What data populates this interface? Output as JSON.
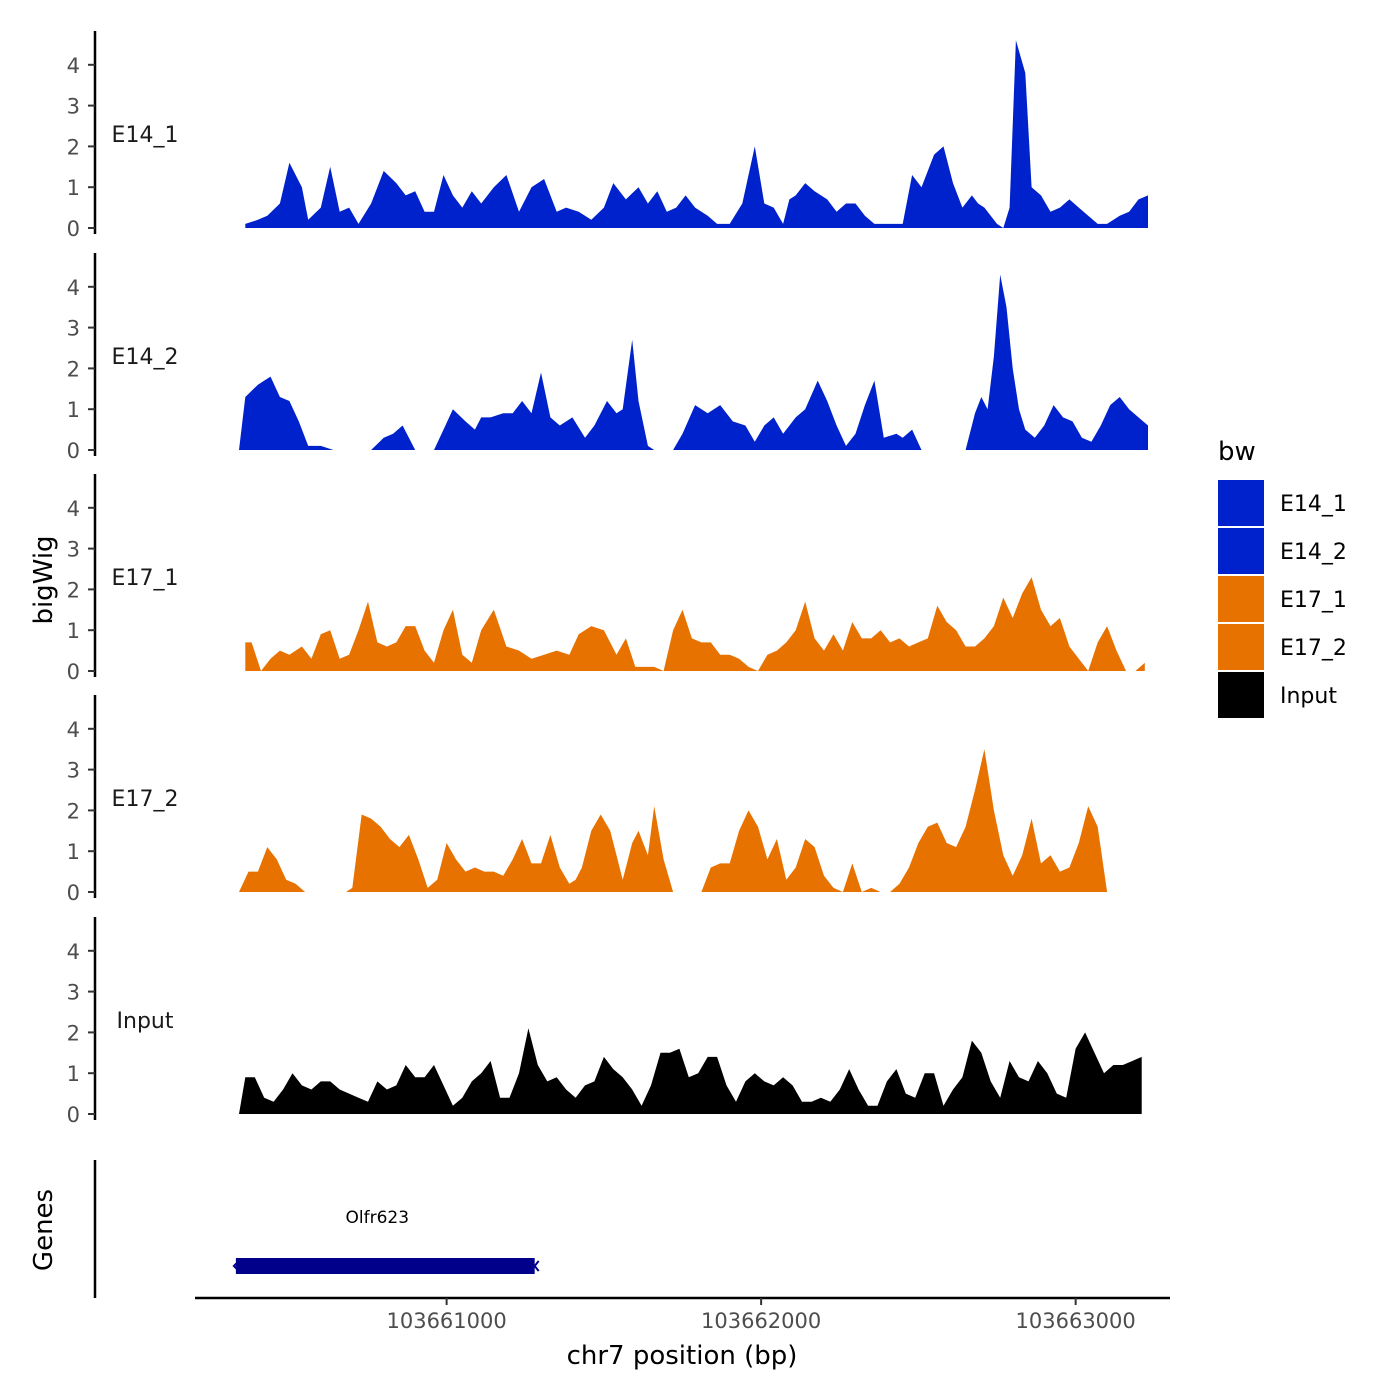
{
  "chart_data": {
    "type": "area",
    "ylabel": "bigWig",
    "xlabel": "chr7 position (bp)",
    "ylim": [
      0,
      4.7
    ],
    "xlim": [
      103660200,
      103663300
    ],
    "y_ticks": [
      0,
      1,
      2,
      3,
      4
    ],
    "x_ticks": [
      103661000,
      103662000,
      103663000
    ],
    "x_tick_labels": [
      "103661000",
      "103662000",
      "103663000"
    ],
    "legend": {
      "title": "bw",
      "position": "right",
      "entries": [
        {
          "label": "E14_1",
          "color": "#0022CC"
        },
        {
          "label": "E14_2",
          "color": "#0022CC"
        },
        {
          "label": "E17_1",
          "color": "#E87200"
        },
        {
          "label": "E17_2",
          "color": "#E87200"
        },
        {
          "label": "Input",
          "color": "#000000"
        }
      ]
    },
    "series": [
      {
        "name": "E14_1",
        "color": "#0022CC",
        "x": [
          103660360,
          103660400,
          103660430,
          103660470,
          103660500,
          103660540,
          103660560,
          103660600,
          103660630,
          103660660,
          103660690,
          103660720,
          103660760,
          103660780,
          103660800,
          103660840,
          103660870,
          103660900,
          103660930,
          103660960,
          103660990,
          103661020,
          103661050,
          103661080,
          103661110,
          103661150,
          103661190,
          103661230,
          103661270,
          103661310,
          103661350,
          103661380,
          103661420,
          103661460,
          103661500,
          103661530,
          103661570,
          103661610,
          103661640,
          103661670,
          103661700,
          103661730,
          103661760,
          103661790,
          103661830,
          103661860,
          103661900,
          103661940,
          103661980,
          103662010,
          103662040,
          103662070,
          103662090,
          103662110,
          103662140,
          103662170,
          103662210,
          103662240,
          103662270,
          103662300,
          103662330,
          103662360,
          103662390,
          103662420,
          103662450,
          103662480,
          103662510,
          103662550,
          103662580,
          103662610,
          103662640,
          103662670,
          103662690,
          103662710,
          103662730,
          103662750,
          103662770,
          103662790,
          103662810,
          103662840,
          103662860,
          103662890,
          103662920,
          103662950,
          103662980,
          103663010,
          103663040,
          103663070,
          103663100,
          103663140,
          103663170,
          103663200,
          103663230
        ],
        "y": [
          0.1,
          0.2,
          0.3,
          0.6,
          1.6,
          1.0,
          0.2,
          0.5,
          1.5,
          0.4,
          0.5,
          0.1,
          0.6,
          1.0,
          1.4,
          1.1,
          0.8,
          0.9,
          0.4,
          0.4,
          1.3,
          0.8,
          0.5,
          0.9,
          0.6,
          1.0,
          1.3,
          0.4,
          1.0,
          1.2,
          0.4,
          0.5,
          0.4,
          0.2,
          0.5,
          1.1,
          0.7,
          1.0,
          0.6,
          0.9,
          0.4,
          0.5,
          0.8,
          0.5,
          0.3,
          0.1,
          0.1,
          0.6,
          2.0,
          0.6,
          0.5,
          0.1,
          0.7,
          0.8,
          1.1,
          0.9,
          0.7,
          0.4,
          0.6,
          0.6,
          0.3,
          0.1,
          0.1,
          0.1,
          0.1,
          1.3,
          1.0,
          1.8,
          2.0,
          1.1,
          0.5,
          0.8,
          0.6,
          0.5,
          0.3,
          0.1,
          0.0,
          0.5,
          4.6,
          3.8,
          1.0,
          0.8,
          0.4,
          0.5,
          0.7,
          0.5,
          0.3,
          0.1,
          0.1,
          0.3,
          0.4,
          0.7,
          0.8
        ]
      },
      {
        "name": "E14_2",
        "color": "#0022CC",
        "x": [
          103660340,
          103660360,
          103660400,
          103660440,
          103660470,
          103660500,
          103660530,
          103660560,
          103660600,
          103660640,
          103660700,
          103660760,
          103660800,
          103660830,
          103660860,
          103660900,
          103660930,
          103660960,
          103660990,
          103661020,
          103661060,
          103661090,
          103661110,
          103661140,
          103661180,
          103661210,
          103661240,
          103661270,
          103661300,
          103661330,
          103661360,
          103661400,
          103661440,
          103661470,
          103661510,
          103661540,
          103661560,
          103661590,
          103661610,
          103661640,
          103661660,
          103661690,
          103661720,
          103661750,
          103661790,
          103661830,
          103661870,
          103661910,
          103661950,
          103661980,
          103662010,
          103662040,
          103662070,
          103662110,
          103662140,
          103662180,
          103662210,
          103662240,
          103662270,
          103662300,
          103662330,
          103662360,
          103662390,
          103662430,
          103662450,
          103662480,
          103662510,
          103662560,
          103662590,
          103662620,
          103662650,
          103662680,
          103662700,
          103662720,
          103662740,
          103662760,
          103662780,
          103662800,
          103662820,
          103662840,
          103662870,
          103662900,
          103662930,
          103662960,
          103662990,
          103663020,
          103663050,
          103663080,
          103663110,
          103663140,
          103663170,
          103663200,
          103663230
        ],
        "y": [
          0.0,
          1.3,
          1.6,
          1.8,
          1.3,
          1.2,
          0.7,
          0.1,
          0.1,
          0.0,
          0.0,
          0.0,
          0.3,
          0.4,
          0.6,
          0.0,
          0.0,
          0.0,
          0.5,
          1.0,
          0.7,
          0.5,
          0.8,
          0.8,
          0.9,
          0.9,
          1.2,
          0.9,
          1.9,
          0.8,
          0.6,
          0.8,
          0.3,
          0.6,
          1.2,
          0.9,
          1.0,
          2.7,
          1.2,
          0.1,
          0.0,
          0.0,
          0.0,
          0.4,
          1.1,
          0.9,
          1.1,
          0.7,
          0.6,
          0.2,
          0.6,
          0.8,
          0.4,
          0.8,
          1.0,
          1.7,
          1.2,
          0.6,
          0.1,
          0.4,
          1.1,
          1.7,
          0.3,
          0.4,
          0.3,
          0.5,
          0.0,
          0.0,
          0.0,
          0.0,
          0.0,
          0.9,
          1.3,
          1.0,
          2.3,
          4.3,
          3.5,
          2.0,
          1.0,
          0.5,
          0.3,
          0.6,
          1.1,
          0.8,
          0.7,
          0.3,
          0.2,
          0.6,
          1.1,
          1.3,
          1.0,
          0.8,
          0.6
        ]
      },
      {
        "name": "E17_1",
        "color": "#E87200",
        "x": [
          103660360,
          103660380,
          103660410,
          103660440,
          103660470,
          103660500,
          103660540,
          103660570,
          103660600,
          103660630,
          103660660,
          103660690,
          103660720,
          103660750,
          103660780,
          103660810,
          103660840,
          103660870,
          103660900,
          103660930,
          103660960,
          103660990,
          103661020,
          103661050,
          103661080,
          103661110,
          103661150,
          103661190,
          103661230,
          103661270,
          103661310,
          103661350,
          103661390,
          103661420,
          103661460,
          103661500,
          103661540,
          103661570,
          103661600,
          103661630,
          103661660,
          103661690,
          103661720,
          103661750,
          103661780,
          103661810,
          103661840,
          103661870,
          103661900,
          103661930,
          103661960,
          103661990,
          103662020,
          103662050,
          103662080,
          103662110,
          103662140,
          103662170,
          103662200,
          103662230,
          103662260,
          103662290,
          103662320,
          103662350,
          103662380,
          103662410,
          103662440,
          103662470,
          103662500,
          103662530,
          103662560,
          103662590,
          103662620,
          103662650,
          103662680,
          103662710,
          103662740,
          103662770,
          103662800,
          103662830,
          103662860,
          103662890,
          103662920,
          103662950,
          103662980,
          103663010,
          103663040,
          103663070,
          103663100,
          103663130,
          103663160,
          103663190,
          103663220
        ],
        "y": [
          0.7,
          0.7,
          0.0,
          0.3,
          0.5,
          0.4,
          0.6,
          0.3,
          0.9,
          1.0,
          0.3,
          0.4,
          1.0,
          1.7,
          0.7,
          0.6,
          0.7,
          1.1,
          1.1,
          0.5,
          0.2,
          1.0,
          1.5,
          0.4,
          0.2,
          1.0,
          1.5,
          0.6,
          0.5,
          0.3,
          0.4,
          0.5,
          0.4,
          0.9,
          1.1,
          1.0,
          0.4,
          0.8,
          0.1,
          0.1,
          0.1,
          0.0,
          1.0,
          1.5,
          0.8,
          0.7,
          0.7,
          0.4,
          0.4,
          0.3,
          0.1,
          0.0,
          0.4,
          0.5,
          0.7,
          1.0,
          1.7,
          0.8,
          0.5,
          0.9,
          0.5,
          1.2,
          0.8,
          0.8,
          1.0,
          0.7,
          0.8,
          0.6,
          0.7,
          0.8,
          1.6,
          1.2,
          1.0,
          0.6,
          0.6,
          0.8,
          1.1,
          1.8,
          1.3,
          1.9,
          2.3,
          1.5,
          1.1,
          1.3,
          0.6,
          0.3,
          0.0,
          0.7,
          1.1,
          0.5,
          0.0,
          0.0,
          0.2
        ]
      },
      {
        "name": "E17_2",
        "color": "#E87200",
        "x": [
          103660340,
          103660370,
          103660400,
          103660430,
          103660460,
          103660490,
          103660520,
          103660550,
          103660580,
          103660610,
          103660640,
          103660680,
          103660700,
          103660730,
          103660760,
          103660790,
          103660820,
          103660850,
          103660880,
          103660910,
          103660940,
          103660970,
          103661000,
          103661030,
          103661060,
          103661090,
          103661120,
          103661150,
          103661180,
          103661210,
          103661240,
          103661270,
          103661300,
          103661330,
          103661360,
          103661390,
          103661410,
          103661430,
          103661460,
          103661490,
          103661520,
          103661540,
          103661560,
          103661590,
          103661610,
          103661640,
          103661660,
          103661690,
          103661720,
          103661750,
          103661780,
          103661810,
          103661840,
          103661870,
          103661900,
          103661930,
          103661960,
          103661990,
          103662020,
          103662050,
          103662080,
          103662110,
          103662140,
          103662170,
          103662200,
          103662230,
          103662260,
          103662290,
          103662320,
          103662350,
          103662380,
          103662410,
          103662440,
          103662470,
          103662500,
          103662530,
          103662560,
          103662590,
          103662620,
          103662650,
          103662680,
          103662710,
          103662740,
          103662770,
          103662800,
          103662830,
          103662860,
          103662890,
          103662920,
          103662950,
          103662980,
          103663010,
          103663040,
          103663070,
          103663100,
          103663130,
          103663160,
          103663190,
          103663220
        ],
        "y": [
          0.0,
          0.5,
          0.5,
          1.1,
          0.8,
          0.3,
          0.2,
          0.0,
          0.0,
          0.0,
          0.0,
          0.0,
          0.1,
          1.9,
          1.8,
          1.6,
          1.3,
          1.1,
          1.4,
          0.8,
          0.1,
          0.3,
          1.2,
          0.8,
          0.5,
          0.6,
          0.5,
          0.5,
          0.4,
          0.8,
          1.3,
          0.7,
          0.7,
          1.4,
          0.6,
          0.2,
          0.3,
          0.6,
          1.5,
          1.9,
          1.5,
          0.9,
          0.3,
          1.2,
          1.5,
          0.9,
          2.1,
          0.8,
          0.0,
          0.0,
          0.0,
          0.0,
          0.6,
          0.7,
          0.7,
          1.5,
          2.0,
          1.6,
          0.8,
          1.3,
          0.3,
          0.6,
          1.3,
          1.1,
          0.4,
          0.1,
          0.0,
          0.7,
          0.0,
          0.1,
          0.0,
          0.0,
          0.2,
          0.6,
          1.2,
          1.6,
          1.7,
          1.2,
          1.1,
          1.6,
          2.5,
          3.5,
          2.0,
          0.9,
          0.4,
          0.9,
          1.8,
          0.7,
          0.9,
          0.5,
          0.6,
          1.2,
          2.1,
          1.6,
          0.0,
          0.0,
          0.0,
          0.0,
          0.0
        ]
      },
      {
        "name": "Input",
        "color": "#000000",
        "x": [
          103660340,
          103660360,
          103660390,
          103660420,
          103660450,
          103660480,
          103660510,
          103660540,
          103660570,
          103660600,
          103660630,
          103660660,
          103660690,
          103660720,
          103660750,
          103660780,
          103660810,
          103660840,
          103660870,
          103660900,
          103660930,
          103660960,
          103660990,
          103661020,
          103661050,
          103661080,
          103661110,
          103661140,
          103661170,
          103661200,
          103661230,
          103661260,
          103661290,
          103661320,
          103661350,
          103661380,
          103661410,
          103661440,
          103661470,
          103661500,
          103661530,
          103661560,
          103661590,
          103661620,
          103661650,
          103661680,
          103661710,
          103661740,
          103661770,
          103661800,
          103661830,
          103661860,
          103661890,
          103661920,
          103661950,
          103661980,
          103662010,
          103662040,
          103662070,
          103662100,
          103662130,
          103662160,
          103662190,
          103662220,
          103662250,
          103662280,
          103662310,
          103662340,
          103662370,
          103662400,
          103662430,
          103662460,
          103662490,
          103662520,
          103662550,
          103662580,
          103662610,
          103662640,
          103662670,
          103662700,
          103662730,
          103662760,
          103662790,
          103662820,
          103662850,
          103662880,
          103662910,
          103662940,
          103662970,
          103663000,
          103663030,
          103663060,
          103663090,
          103663120,
          103663150,
          103663180,
          103663210
        ],
        "y": [
          0.0,
          0.9,
          0.9,
          0.4,
          0.3,
          0.6,
          1.0,
          0.7,
          0.6,
          0.8,
          0.8,
          0.6,
          0.5,
          0.4,
          0.3,
          0.8,
          0.6,
          0.7,
          1.2,
          0.9,
          0.9,
          1.2,
          0.7,
          0.2,
          0.4,
          0.8,
          1.0,
          1.3,
          0.4,
          0.4,
          1.0,
          2.1,
          1.2,
          0.8,
          0.9,
          0.6,
          0.4,
          0.7,
          0.8,
          1.4,
          1.1,
          0.9,
          0.6,
          0.2,
          0.7,
          1.5,
          1.5,
          1.6,
          0.9,
          1.0,
          1.4,
          1.4,
          0.7,
          0.3,
          0.8,
          1.0,
          0.8,
          0.7,
          0.9,
          0.7,
          0.3,
          0.3,
          0.4,
          0.3,
          0.6,
          1.1,
          0.6,
          0.2,
          0.2,
          0.8,
          1.1,
          0.5,
          0.4,
          1.0,
          1.0,
          0.2,
          0.6,
          0.9,
          1.8,
          1.5,
          0.8,
          0.4,
          1.3,
          0.9,
          0.8,
          1.3,
          1.0,
          0.5,
          0.4,
          1.6,
          2.0,
          1.5,
          1.0,
          1.2,
          1.2,
          1.3,
          1.4
        ]
      }
    ],
    "genes_track": {
      "ylabel": "Genes",
      "genes": [
        {
          "name": "Olfr623",
          "start": 103660330,
          "end": 103661280,
          "color": "#00008B"
        }
      ]
    }
  }
}
